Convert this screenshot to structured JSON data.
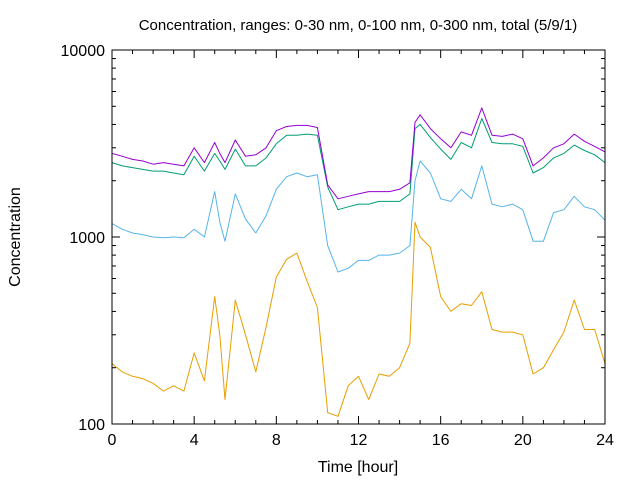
{
  "chart_data": {
    "type": "line",
    "title": "Concentration, ranges: 0-30 nm, 0-100 nm, 0-300 nm, total (5/9/1)",
    "xlabel": "Time [hour]",
    "ylabel": "Concentration",
    "xlim": [
      0,
      24
    ],
    "ylim": [
      100,
      10000
    ],
    "yscale": "log",
    "grid": false,
    "legend": "none",
    "x_ticks": [
      0,
      4,
      8,
      12,
      16,
      20,
      24
    ],
    "x_tick_labels": [
      "0",
      "4",
      "8",
      "12",
      "16",
      "20",
      "24"
    ],
    "y_ticks": [
      100,
      1000,
      10000
    ],
    "y_tick_labels": [
      "100",
      "1000",
      "10000"
    ],
    "x": [
      0,
      0.5,
      1,
      1.5,
      2,
      2.5,
      3,
      3.5,
      4,
      4.5,
      5,
      5.25,
      5.5,
      6,
      6.5,
      7,
      7.5,
      8,
      8.5,
      9,
      9.5,
      10,
      10.5,
      11,
      11.5,
      12,
      12.5,
      13,
      13.5,
      14,
      14.5,
      14.75,
      15,
      15.5,
      16,
      16.5,
      17,
      17.5,
      18,
      18.5,
      19,
      19.5,
      20,
      20.5,
      21,
      21.5,
      22,
      22.5,
      23,
      23.5,
      24
    ],
    "series": [
      {
        "color": "#e69f00",
        "values": [
          210,
          190,
          180,
          175,
          165,
          150,
          160,
          150,
          240,
          170,
          480,
          300,
          135,
          460,
          300,
          190,
          330,
          610,
          760,
          820,
          580,
          420,
          115,
          110,
          160,
          180,
          135,
          185,
          180,
          200,
          270,
          1200,
          1000,
          880,
          480,
          400,
          440,
          430,
          510,
          320,
          310,
          310,
          300,
          185,
          200,
          250,
          310,
          460,
          320,
          320,
          210
        ]
      },
      {
        "color": "#56b4e9",
        "values": [
          1180,
          1100,
          1050,
          1030,
          1000,
          990,
          1000,
          990,
          1100,
          1000,
          1750,
          1200,
          950,
          1700,
          1250,
          1050,
          1300,
          1800,
          2100,
          2200,
          2100,
          2150,
          900,
          650,
          680,
          750,
          750,
          800,
          800,
          820,
          900,
          2000,
          2550,
          2200,
          1600,
          1550,
          1800,
          1600,
          2400,
          1500,
          1450,
          1500,
          1400,
          950,
          950,
          1350,
          1400,
          1650,
          1450,
          1400,
          1230
        ]
      },
      {
        "color": "#009e73",
        "values": [
          2500,
          2400,
          2350,
          2300,
          2250,
          2250,
          2200,
          2150,
          2700,
          2250,
          2800,
          2550,
          2300,
          2950,
          2400,
          2400,
          2650,
          3150,
          3500,
          3500,
          3550,
          3500,
          1850,
          1400,
          1450,
          1500,
          1500,
          1550,
          1550,
          1550,
          1700,
          3800,
          4000,
          3400,
          2950,
          2600,
          3200,
          3000,
          4300,
          3200,
          3150,
          3150,
          3050,
          2200,
          2350,
          2650,
          2800,
          3100,
          2900,
          2750,
          2500
        ]
      },
      {
        "color": "#9400d3",
        "values": [
          2800,
          2700,
          2600,
          2550,
          2450,
          2500,
          2450,
          2400,
          3000,
          2500,
          3200,
          2800,
          2500,
          3300,
          2700,
          2750,
          3000,
          3700,
          3900,
          3950,
          3950,
          3850,
          1900,
          1600,
          1650,
          1700,
          1750,
          1750,
          1750,
          1800,
          1950,
          4100,
          4500,
          3800,
          3350,
          3000,
          3650,
          3500,
          4900,
          3500,
          3450,
          3550,
          3350,
          2400,
          2650,
          3000,
          3150,
          3550,
          3250,
          3050,
          2850
        ]
      }
    ]
  }
}
